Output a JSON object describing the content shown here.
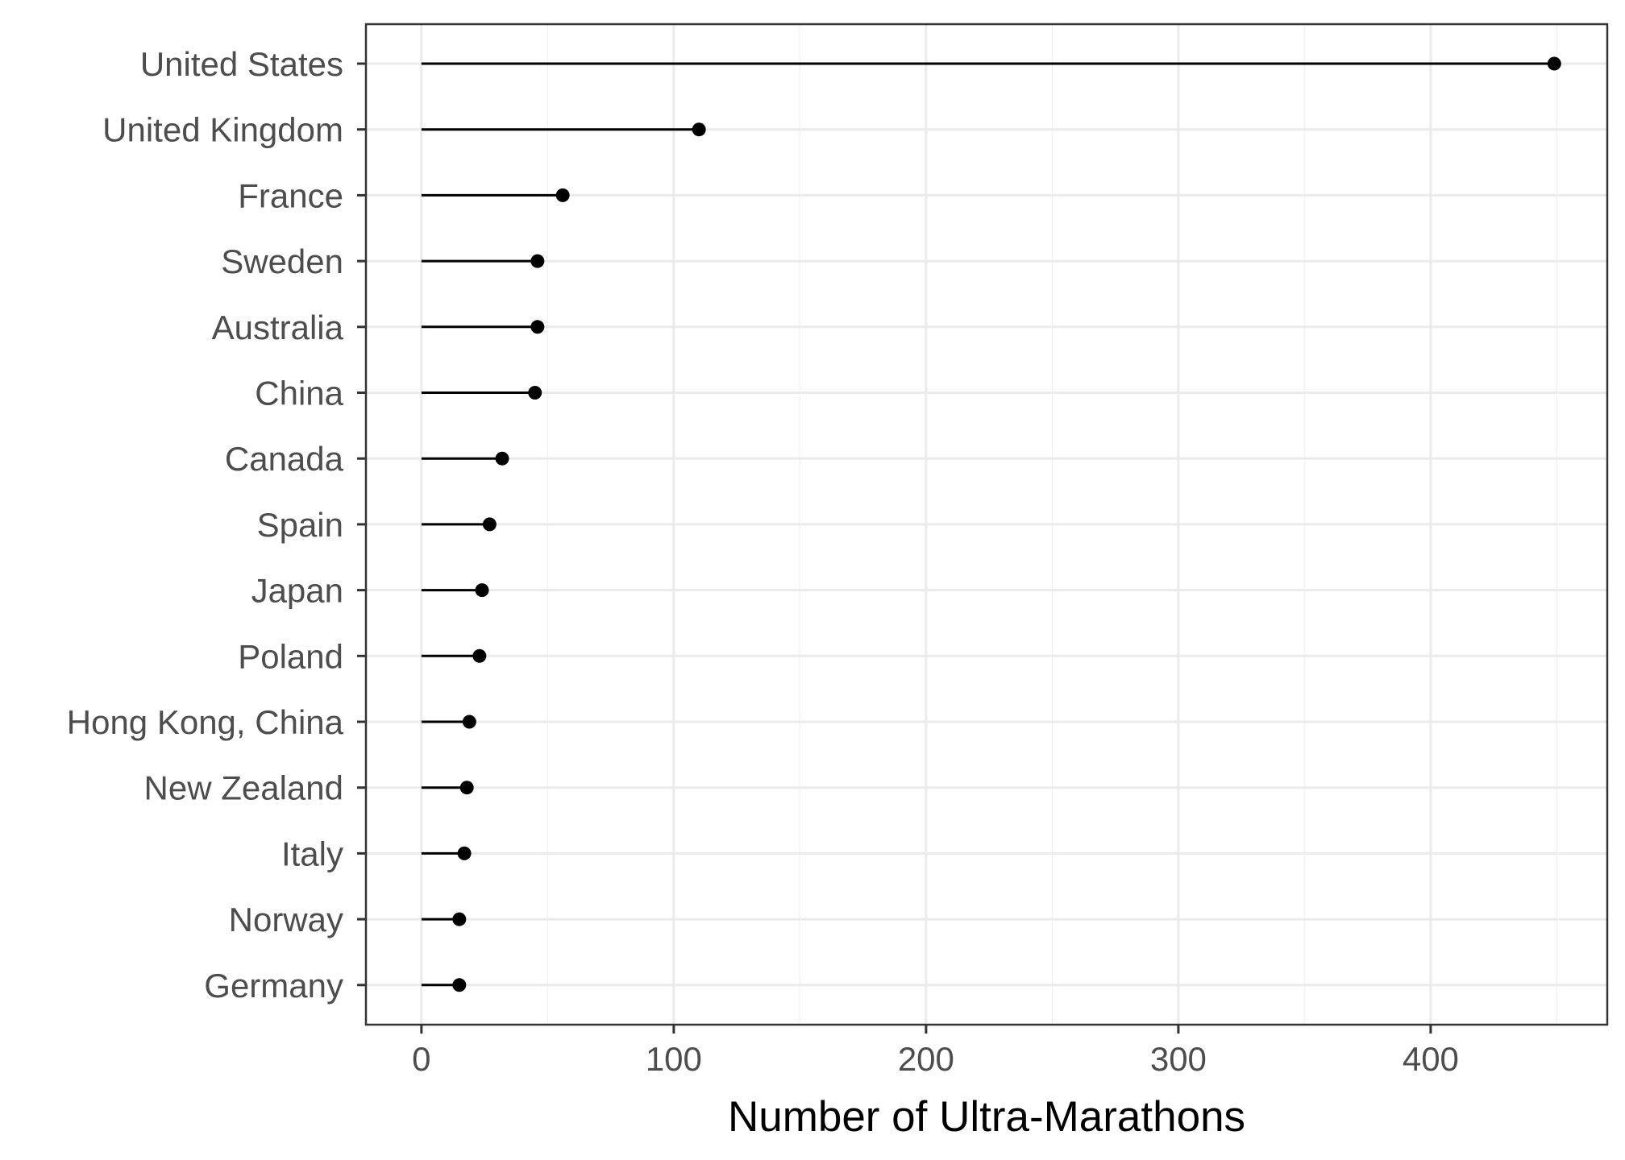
{
  "chart_data": {
    "type": "lollipop",
    "orientation": "horizontal",
    "categories": [
      "United States",
      "United Kingdom",
      "France",
      "Sweden",
      "Australia",
      "China",
      "Canada",
      "Spain",
      "Japan",
      "Poland",
      "Hong Kong, China",
      "New Zealand",
      "Italy",
      "Norway",
      "Germany"
    ],
    "values": [
      449,
      110,
      56,
      46,
      46,
      45,
      32,
      27,
      24,
      23,
      19,
      18,
      17,
      15,
      15
    ],
    "xlabel": "Number of Ultra-Marathons",
    "ylabel": "",
    "xlim": [
      -22,
      470
    ],
    "xticks": [
      0,
      100,
      200,
      300,
      400
    ],
    "xticks_minor": [
      50,
      150,
      250,
      350,
      450
    ],
    "grid": true,
    "legend": "none",
    "colors": {
      "mark": "#000000",
      "grid_major": "#ebebeb",
      "grid_minor": "#f2f2f2",
      "panel_border": "#333333",
      "tick_text": "#4d4d4d"
    }
  }
}
